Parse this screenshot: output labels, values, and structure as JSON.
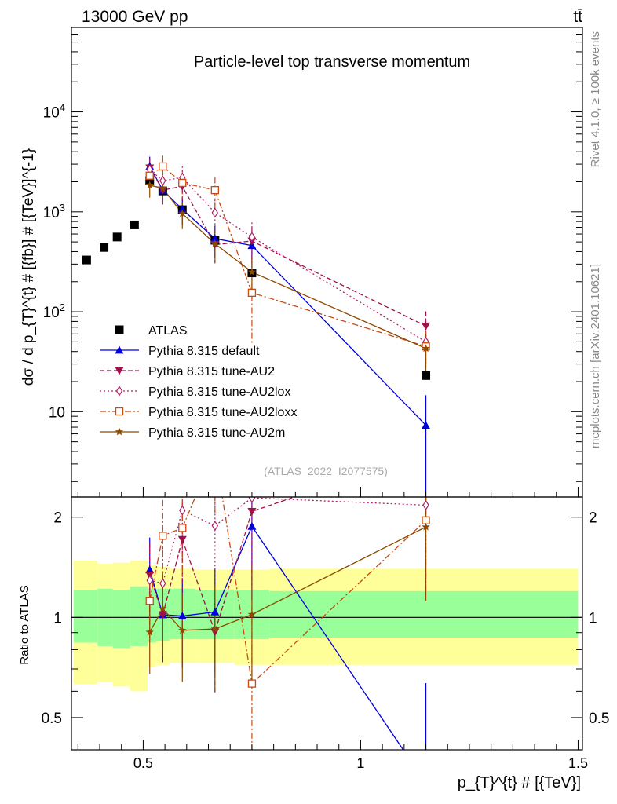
{
  "header": {
    "left": "13000 GeV pp",
    "right": "tt̄"
  },
  "side_labels": {
    "rivet": "Rivet 4.1.0, ≥ 100k events",
    "site": "mcplots.cern.ch [arXiv:2401.10621]"
  },
  "chart_data": {
    "type": "line",
    "title": "Particle-level top transverse momentum",
    "watermark": "(ATLAS_2022_I2077575)",
    "xlabel": "p_{T}^{t} # [{TeV}]",
    "ylabel": "dσ / d p_{T}^{t} # [{fb}] # [{TeV}]^{-1}",
    "ratio_ylabel": "Ratio to ATLAS",
    "xlim": [
      0.335,
      1.51
    ],
    "ylim": [
      1.4,
      70000
    ],
    "ratio_ylim": [
      0.4,
      2.3
    ],
    "x_ticks": [
      {
        "v": 0.5,
        "label": "0.5"
      },
      {
        "v": 1.0,
        "label": "1"
      },
      {
        "v": 1.5,
        "label": "1.5"
      }
    ],
    "y_ticks": [
      {
        "v": 10,
        "label": "10"
      },
      {
        "v": 100,
        "label": "10^2"
      },
      {
        "v": 1000,
        "label": "10^3"
      },
      {
        "v": 10000,
        "label": "10^4"
      }
    ],
    "ratio_ticks": [
      {
        "v": 0.5,
        "label": "0.5"
      },
      {
        "v": 1,
        "label": "1"
      },
      {
        "v": 2,
        "label": "2"
      }
    ],
    "data": {
      "name": "ATLAS",
      "x": [
        0.37,
        0.41,
        0.44,
        0.48,
        0.515,
        0.545,
        0.59,
        0.665,
        0.75,
        1.15
      ],
      "y": [
        330,
        440,
        560,
        740,
        2050,
        1620,
        1050,
        520,
        245,
        23
      ]
    },
    "bands": {
      "edges": [
        0.34,
        0.395,
        0.43,
        0.47,
        0.51,
        0.53,
        0.56,
        0.62,
        0.71,
        0.79,
        1.5
      ],
      "inner_lo": [
        0.84,
        0.82,
        0.81,
        0.82,
        0.84,
        0.85,
        0.86,
        0.86,
        0.86,
        0.87
      ],
      "inner_hi": [
        1.21,
        1.22,
        1.21,
        1.24,
        1.22,
        1.22,
        1.22,
        1.21,
        1.21,
        1.2
      ],
      "outer_lo": [
        0.63,
        0.64,
        0.62,
        0.6,
        0.71,
        0.72,
        0.73,
        0.73,
        0.72,
        0.72
      ],
      "outer_hi": [
        1.48,
        1.45,
        1.46,
        1.48,
        1.44,
        1.42,
        1.4,
        1.39,
        1.39,
        1.4
      ]
    },
    "series": [
      {
        "name": "Pythia 8.315 default",
        "color": "#0000dd",
        "dash": "",
        "marker": "triangle-up",
        "x": [
          0.515,
          0.545,
          0.59,
          0.665,
          0.75,
          1.15
        ],
        "y": [
          2850,
          1650,
          1060,
          540,
          460,
          7.3
        ],
        "err": [
          0.25,
          0.28,
          0.3,
          0.35,
          0.4,
          1.0
        ]
      },
      {
        "name": "Pythia 8.315 tune-AU2",
        "color": "#a0104a",
        "dash": "6,3",
        "marker": "triangle-down",
        "x": [
          0.515,
          0.545,
          0.59,
          0.665,
          0.75,
          1.15
        ],
        "y": [
          2750,
          1650,
          1800,
          470,
          510,
          72
        ],
        "err": [
          0.25,
          0.28,
          0.3,
          0.35,
          0.4,
          0.4
        ]
      },
      {
        "name": "Pythia 8.315 tune-AU2lox",
        "color": "#b0206a",
        "dash": "2,3",
        "marker": "diamond-open",
        "x": [
          0.515,
          0.545,
          0.59,
          0.665,
          0.75,
          1.15
        ],
        "y": [
          2650,
          2050,
          2200,
          980,
          560,
          50
        ],
        "err": [
          0.25,
          0.28,
          0.3,
          0.35,
          0.4,
          0.4
        ]
      },
      {
        "name": "Pythia 8.315 tune-AU2loxx",
        "color": "#c84a10",
        "dash": "8,3,2,3",
        "marker": "square-open",
        "x": [
          0.515,
          0.545,
          0.59,
          0.665,
          0.75,
          1.15
        ],
        "y": [
          2300,
          2850,
          1950,
          1650,
          155,
          45
        ],
        "err": [
          0.25,
          0.28,
          0.3,
          0.35,
          0.7,
          0.4
        ]
      },
      {
        "name": "Pythia 8.315 tune-AU2m",
        "color": "#8b4a00",
        "dash": "",
        "marker": "star",
        "x": [
          0.515,
          0.545,
          0.59,
          0.665,
          0.75,
          1.15
        ],
        "y": [
          1850,
          1720,
          960,
          480,
          250,
          43
        ],
        "err": [
          0.25,
          0.28,
          0.3,
          0.35,
          0.4,
          0.4
        ]
      }
    ]
  }
}
